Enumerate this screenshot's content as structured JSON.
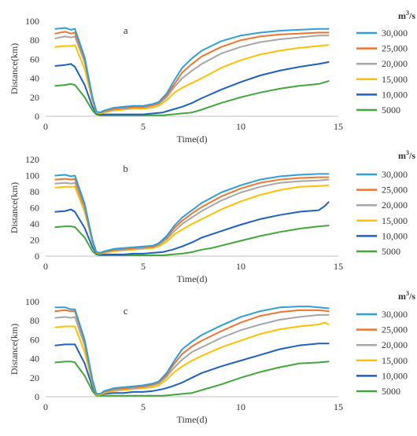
{
  "legend": {
    "unit_base": "m",
    "unit_exp": "3",
    "unit_tail": "/s"
  },
  "colors": {
    "30,000": "#2e9fd8",
    "25,000": "#ee7531",
    "20,000": "#a6a6a6",
    "15,000": "#ffc000",
    "10,000": "#1f5fbd",
    "5000": "#43a63a"
  },
  "chart_data": [
    {
      "type": "line",
      "panel_label": "a",
      "xlabel": "Time(d)",
      "ylabel": "Distance(km)",
      "xlim": [
        0,
        15
      ],
      "ylim": [
        0,
        100
      ],
      "xticks": [
        0,
        5,
        10,
        15
      ],
      "yticks": [
        0,
        20,
        40,
        60,
        80,
        100
      ],
      "grid": "none",
      "legend_position": "right",
      "series": [
        {
          "name": "30,000",
          "x": [
            0.5,
            1.0,
            1.3,
            1.5,
            2.0,
            2.4,
            2.6,
            2.8,
            3.0,
            3.5,
            4.0,
            4.5,
            5.0,
            5.5,
            5.8,
            6.2,
            6.6,
            7.0,
            7.5,
            8.0,
            9.0,
            10.0,
            11.0,
            12.0,
            13.0,
            14.0,
            14.5
          ],
          "y": [
            92,
            93,
            91,
            92,
            62,
            20,
            5,
            4,
            6,
            9,
            10,
            11,
            11,
            13,
            15,
            24,
            38,
            51,
            61,
            69,
            79,
            85,
            88,
            90,
            91,
            92,
            92
          ]
        },
        {
          "name": "25,000",
          "x": [
            0.5,
            1.0,
            1.3,
            1.5,
            2.0,
            2.4,
            2.6,
            2.8,
            3.0,
            3.5,
            4.0,
            4.5,
            5.0,
            5.5,
            5.8,
            6.2,
            6.6,
            7.0,
            7.5,
            8.0,
            9.0,
            10.0,
            11.0,
            12.0,
            13.0,
            14.0,
            14.5
          ],
          "y": [
            87,
            89,
            87,
            88,
            60,
            19,
            5,
            4,
            5,
            8,
            9,
            10,
            10,
            12,
            14,
            22,
            34,
            46,
            55,
            63,
            73,
            80,
            84,
            86,
            87,
            88,
            88
          ]
        },
        {
          "name": "20,000",
          "x": [
            0.5,
            1.0,
            1.3,
            1.5,
            2.0,
            2.4,
            2.6,
            2.8,
            3.0,
            3.5,
            4.0,
            4.5,
            5.0,
            5.5,
            5.8,
            6.2,
            6.6,
            7.0,
            7.5,
            8.0,
            9.0,
            10.0,
            11.0,
            12.0,
            13.0,
            14.0,
            14.5
          ],
          "y": [
            82,
            84,
            83,
            84,
            57,
            18,
            5,
            4,
            5,
            7,
            8,
            9,
            9,
            11,
            13,
            20,
            31,
            40,
            48,
            55,
            66,
            73,
            78,
            81,
            83,
            85,
            85
          ]
        },
        {
          "name": "15,000",
          "x": [
            0.5,
            1.0,
            1.3,
            1.5,
            2.0,
            2.4,
            2.6,
            2.8,
            3.0,
            3.5,
            4.0,
            4.5,
            5.0,
            5.5,
            5.8,
            6.2,
            6.6,
            7.0,
            7.5,
            8.0,
            9.0,
            10.0,
            11.0,
            12.0,
            13.0,
            14.0,
            14.5
          ],
          "y": [
            73,
            74,
            74,
            75,
            50,
            16,
            4,
            3,
            4,
            6,
            7,
            8,
            8,
            9,
            11,
            17,
            25,
            30,
            35,
            40,
            51,
            59,
            65,
            69,
            72,
            74,
            75
          ]
        },
        {
          "name": "10,000",
          "x": [
            0.5,
            1.0,
            1.3,
            1.5,
            2.0,
            2.4,
            2.6,
            2.8,
            3.0,
            3.5,
            4.0,
            4.5,
            5.0,
            5.5,
            6.0,
            6.5,
            7.0,
            7.5,
            8.0,
            9.0,
            10.0,
            11.0,
            12.0,
            13.0,
            14.0,
            14.5
          ],
          "y": [
            53,
            54,
            55,
            52,
            33,
            10,
            3,
            2,
            2,
            2,
            2,
            2,
            2,
            3,
            4,
            7,
            10,
            14,
            19,
            28,
            36,
            43,
            48,
            52,
            55,
            57
          ]
        },
        {
          "name": "5000",
          "x": [
            0.5,
            1.0,
            1.3,
            1.5,
            2.0,
            2.4,
            2.6,
            2.8,
            3.0,
            4.0,
            5.0,
            5.5,
            6.0,
            6.5,
            7.0,
            7.5,
            8.0,
            9.0,
            10.0,
            11.0,
            12.0,
            13.0,
            14.0,
            14.5
          ],
          "y": [
            32,
            33,
            34,
            33,
            20,
            6,
            2,
            1,
            1,
            1,
            1,
            1,
            1,
            2,
            3,
            4,
            7,
            14,
            20,
            25,
            29,
            32,
            34,
            37
          ]
        }
      ]
    },
    {
      "type": "line",
      "panel_label": "b",
      "xlabel": "Time(d)",
      "ylabel": "Distance(km)",
      "xlim": [
        0,
        15
      ],
      "ylim": [
        0,
        120
      ],
      "xticks": [
        0,
        5,
        10,
        15
      ],
      "yticks": [
        0,
        20,
        40,
        60,
        80,
        100,
        120
      ],
      "grid": "none",
      "legend_position": "right",
      "series": [
        {
          "name": "30,000",
          "x": [
            0.5,
            1.0,
            1.3,
            1.5,
            2.0,
            2.4,
            2.6,
            2.8,
            3.0,
            3.5,
            4.0,
            4.5,
            5.0,
            5.5,
            5.8,
            6.2,
            6.6,
            7.0,
            7.5,
            8.0,
            9.0,
            10.0,
            11.0,
            12.0,
            13.0,
            14.0,
            14.5
          ],
          "y": [
            100,
            101,
            99,
            100,
            65,
            20,
            5,
            4,
            6,
            9,
            10,
            11,
            12,
            13,
            16,
            25,
            38,
            48,
            57,
            66,
            79,
            88,
            95,
            99,
            101,
            102,
            102
          ]
        },
        {
          "name": "25,000",
          "x": [
            0.5,
            1.0,
            1.3,
            1.5,
            2.0,
            2.4,
            2.6,
            2.8,
            3.0,
            3.5,
            4.0,
            4.5,
            5.0,
            5.5,
            5.8,
            6.2,
            6.6,
            7.0,
            7.5,
            8.0,
            9.0,
            10.0,
            11.0,
            12.0,
            13.0,
            14.0,
            14.5
          ],
          "y": [
            95,
            96,
            95,
            96,
            62,
            19,
            5,
            4,
            5,
            8,
            9,
            10,
            11,
            12,
            15,
            23,
            35,
            44,
            53,
            61,
            74,
            84,
            91,
            95,
            97,
            98,
            98
          ]
        },
        {
          "name": "20,000",
          "x": [
            0.5,
            1.0,
            1.3,
            1.5,
            2.0,
            2.4,
            2.6,
            2.8,
            3.0,
            3.5,
            4.0,
            4.5,
            5.0,
            5.5,
            5.8,
            6.2,
            6.6,
            7.0,
            7.5,
            8.0,
            9.0,
            10.0,
            11.0,
            12.0,
            13.0,
            14.0,
            14.5
          ],
          "y": [
            90,
            91,
            90,
            91,
            59,
            18,
            5,
            4,
            5,
            7,
            8,
            9,
            10,
            11,
            14,
            21,
            31,
            40,
            48,
            56,
            69,
            79,
            86,
            91,
            93,
            94,
            95
          ]
        },
        {
          "name": "15,000",
          "x": [
            0.5,
            1.0,
            1.3,
            1.5,
            2.0,
            2.4,
            2.6,
            2.8,
            3.0,
            3.5,
            4.0,
            4.5,
            5.0,
            5.5,
            5.8,
            6.2,
            6.6,
            7.0,
            7.5,
            8.0,
            9.0,
            10.0,
            11.0,
            12.0,
            13.0,
            14.0,
            14.5
          ],
          "y": [
            85,
            86,
            86,
            86,
            55,
            17,
            4,
            3,
            4,
            6,
            7,
            8,
            9,
            10,
            12,
            18,
            27,
            33,
            40,
            46,
            58,
            68,
            76,
            82,
            86,
            87,
            88
          ]
        },
        {
          "name": "10,000",
          "x": [
            0.5,
            1.0,
            1.3,
            1.5,
            2.0,
            2.4,
            2.6,
            2.8,
            3.0,
            3.5,
            4.0,
            4.5,
            5.0,
            5.5,
            6.0,
            6.5,
            7.0,
            7.5,
            8.0,
            9.0,
            10.0,
            11.0,
            12.0,
            13.0,
            14.0,
            14.3,
            14.5
          ],
          "y": [
            55,
            56,
            58,
            55,
            35,
            11,
            3,
            2,
            2,
            2,
            2,
            3,
            3,
            4,
            5,
            8,
            12,
            17,
            23,
            31,
            39,
            46,
            51,
            55,
            57,
            62,
            67
          ]
        },
        {
          "name": "5000",
          "x": [
            0.5,
            1.0,
            1.3,
            1.5,
            2.0,
            2.4,
            2.6,
            2.8,
            3.0,
            4.0,
            5.0,
            5.5,
            6.0,
            6.5,
            7.0,
            7.5,
            8.0,
            8.5,
            9.0,
            10.0,
            11.0,
            12.0,
            13.0,
            14.0,
            14.5
          ],
          "y": [
            36,
            37,
            37,
            36,
            23,
            6,
            2,
            1,
            1,
            1,
            1,
            1,
            1,
            2,
            3,
            5,
            8,
            10,
            13,
            19,
            25,
            30,
            34,
            37,
            38
          ]
        }
      ]
    },
    {
      "type": "line",
      "panel_label": "c",
      "xlabel": "Time(d)",
      "ylabel": "Distance(km)",
      "xlim": [
        0,
        15
      ],
      "ylim": [
        0,
        100
      ],
      "xticks": [
        0,
        5,
        10,
        15
      ],
      "yticks": [
        0,
        20,
        40,
        60,
        80,
        100
      ],
      "grid": "none",
      "legend_position": "right",
      "series": [
        {
          "name": "30,000",
          "x": [
            0.5,
            1.0,
            1.3,
            1.5,
            2.0,
            2.4,
            2.6,
            2.8,
            3.0,
            3.5,
            4.0,
            4.5,
            5.0,
            5.5,
            5.8,
            6.2,
            6.6,
            7.0,
            7.5,
            8.0,
            9.0,
            10.0,
            11.0,
            12.0,
            13.0,
            13.5,
            14.0,
            14.5
          ],
          "y": [
            94,
            94,
            92,
            92,
            60,
            18,
            3,
            3,
            6,
            9,
            10,
            11,
            12,
            14,
            16,
            25,
            38,
            50,
            58,
            65,
            75,
            84,
            90,
            94,
            95,
            95,
            94,
            93
          ]
        },
        {
          "name": "25,000",
          "x": [
            0.5,
            1.0,
            1.3,
            1.5,
            2.0,
            2.4,
            2.6,
            2.8,
            3.0,
            3.5,
            4.0,
            4.5,
            5.0,
            5.5,
            5.8,
            6.2,
            6.6,
            7.0,
            7.5,
            8.0,
            9.0,
            10.0,
            11.0,
            12.0,
            13.0,
            14.0,
            14.5
          ],
          "y": [
            90,
            91,
            90,
            90,
            58,
            17,
            3,
            3,
            5,
            8,
            9,
            10,
            11,
            13,
            15,
            23,
            35,
            45,
            53,
            59,
            69,
            78,
            85,
            89,
            91,
            91,
            90
          ]
        },
        {
          "name": "20,000",
          "x": [
            0.5,
            1.0,
            1.3,
            1.5,
            2.0,
            2.4,
            2.6,
            2.8,
            3.0,
            3.5,
            4.0,
            4.5,
            5.0,
            5.5,
            5.8,
            6.2,
            6.6,
            7.0,
            7.5,
            8.0,
            9.0,
            10.0,
            11.0,
            12.0,
            13.0,
            14.0,
            14.5
          ],
          "y": [
            83,
            84,
            83,
            84,
            54,
            16,
            3,
            3,
            5,
            7,
            8,
            9,
            10,
            12,
            14,
            21,
            31,
            39,
            47,
            52,
            62,
            70,
            76,
            81,
            84,
            86,
            86
          ]
        },
        {
          "name": "15,000",
          "x": [
            0.5,
            1.0,
            1.3,
            1.5,
            2.0,
            2.4,
            2.6,
            2.8,
            3.0,
            3.5,
            4.0,
            4.5,
            5.0,
            5.5,
            5.8,
            6.2,
            6.6,
            7.0,
            7.5,
            8.0,
            9.0,
            10.0,
            11.0,
            12.0,
            13.0,
            14.0,
            14.3,
            14.5
          ],
          "y": [
            73,
            74,
            74,
            74,
            47,
            14,
            2,
            2,
            4,
            6,
            7,
            8,
            9,
            10,
            12,
            18,
            26,
            32,
            38,
            43,
            52,
            59,
            66,
            71,
            74,
            76,
            78,
            76
          ]
        },
        {
          "name": "10,000",
          "x": [
            0.5,
            1.0,
            1.3,
            1.5,
            2.0,
            2.4,
            2.6,
            2.8,
            3.0,
            3.5,
            4.0,
            4.5,
            5.0,
            5.5,
            6.0,
            6.5,
            7.0,
            7.5,
            8.0,
            9.0,
            10.0,
            11.0,
            12.0,
            13.0,
            14.0,
            14.5
          ],
          "y": [
            54,
            55,
            55,
            55,
            35,
            10,
            2,
            2,
            3,
            4,
            4,
            5,
            5,
            6,
            8,
            11,
            15,
            20,
            25,
            32,
            38,
            44,
            50,
            54,
            56,
            56
          ]
        },
        {
          "name": "5000",
          "x": [
            0.5,
            1.0,
            1.3,
            1.5,
            2.0,
            2.4,
            2.6,
            2.8,
            3.0,
            4.0,
            5.0,
            5.5,
            6.0,
            6.5,
            7.0,
            7.5,
            8.0,
            9.0,
            10.0,
            11.0,
            12.0,
            13.0,
            14.0,
            14.5
          ],
          "y": [
            36,
            37,
            37,
            36,
            22,
            6,
            1,
            1,
            1,
            1,
            1,
            1,
            1,
            2,
            3,
            4,
            7,
            13,
            20,
            26,
            31,
            35,
            36,
            37
          ]
        }
      ]
    }
  ]
}
